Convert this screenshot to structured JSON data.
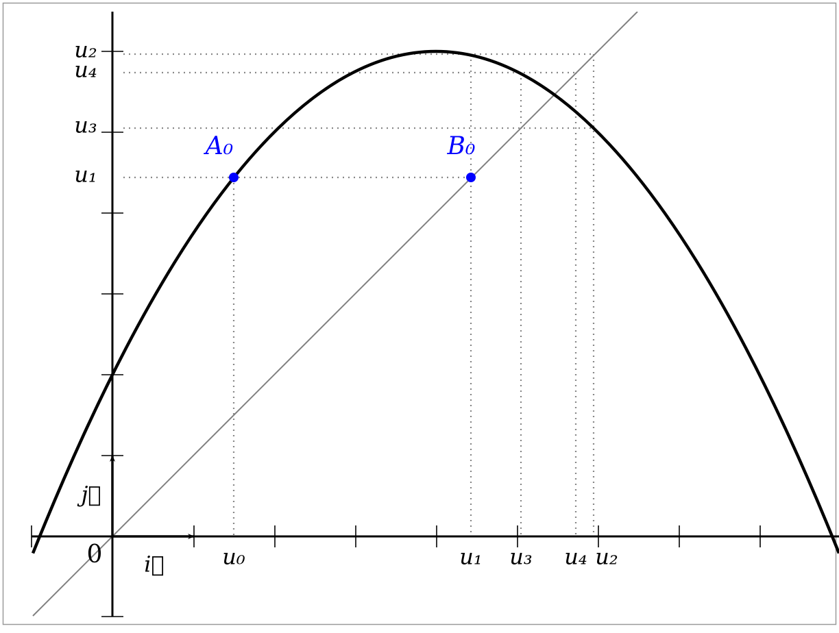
{
  "y_axis_labels": [
    "u₂",
    "u₄",
    "u₃",
    "u₁"
  ],
  "x_axis_labels": [
    "u₀",
    "u₁",
    "u₃",
    "u₄",
    "u₂"
  ],
  "origin_label": "0",
  "vector_i": "i⃗",
  "vector_j": "j⃗",
  "points": [
    "A₀",
    "B₀"
  ]
}
